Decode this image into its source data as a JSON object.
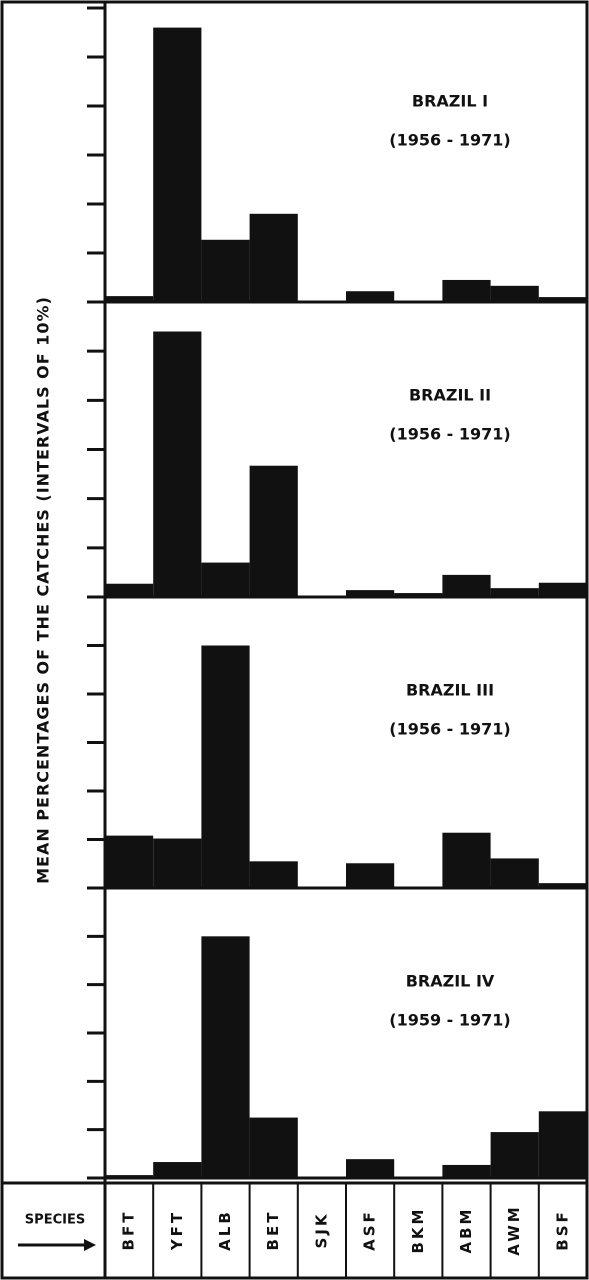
{
  "chart_data": [
    {
      "type": "bar",
      "title": "BRAZIL I",
      "subtitle": "(1956 - 1971)",
      "y_label": "MEAN PERCENTAGES OF THE CATCHES (INTERVALS OF 10%)",
      "values": [
        1.2,
        56,
        12.7,
        18,
        0,
        2.2,
        0,
        4.5,
        3.3,
        1
      ],
      "color": "#111111",
      "ylim": [
        0,
        60
      ],
      "yticks": [
        0,
        10,
        20,
        30,
        40,
        50,
        60
      ]
    },
    {
      "type": "bar",
      "title": "BRAZIL II",
      "subtitle": "(1956 - 1971)",
      "values": [
        2.7,
        54,
        7,
        26.7,
        0,
        1.4,
        0.8,
        4.5,
        1.8,
        2.9
      ],
      "color": "#111111",
      "ylim": [
        0,
        60
      ],
      "yticks": [
        0,
        10,
        20,
        30,
        40,
        50,
        60
      ]
    },
    {
      "type": "bar",
      "title": "BRAZIL III",
      "subtitle": "(1956 - 1971)",
      "values": [
        10.8,
        10.2,
        50,
        5.5,
        0,
        5.1,
        0,
        11.4,
        6.1,
        1
      ],
      "color": "#111111",
      "ylim": [
        0,
        60
      ],
      "yticks": [
        0,
        10,
        20,
        30,
        40,
        50,
        60
      ]
    },
    {
      "type": "bar",
      "title": "BRAZIL IV",
      "subtitle": "(1959 - 1971)",
      "x_label": "SPECIES",
      "categories": [
        "BFT",
        "YFT",
        "ALB",
        "BET",
        "SJK",
        "ASF",
        "BKM",
        "ABM",
        "AWM",
        "BSF"
      ],
      "values": [
        0.6,
        3.3,
        50,
        12.5,
        0,
        3.9,
        0,
        2.7,
        9.5,
        13.8
      ],
      "color": "#111111",
      "ylim": [
        0,
        60
      ],
      "yticks": [
        0,
        10,
        20,
        30,
        40,
        50,
        60
      ]
    }
  ]
}
